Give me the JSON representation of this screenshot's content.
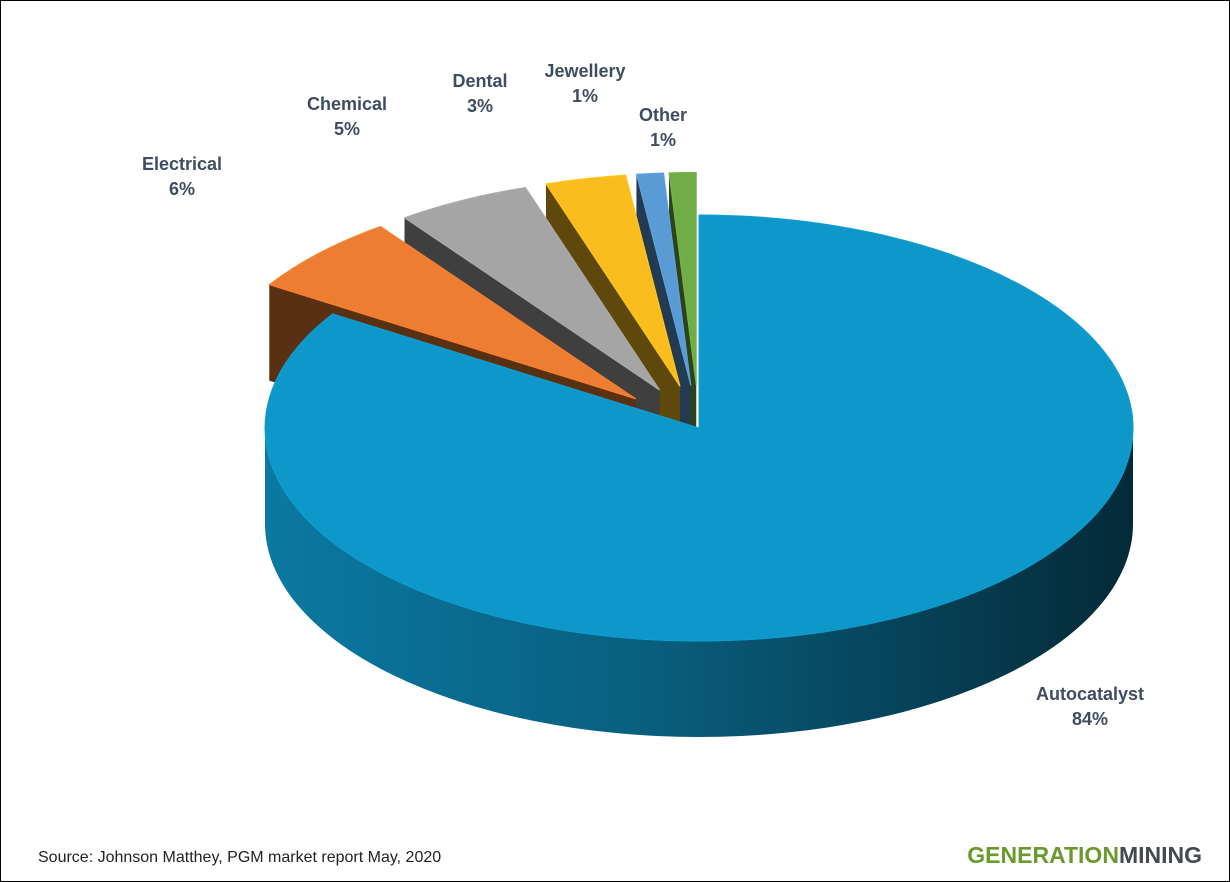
{
  "chart_data": {
    "type": "pie3d",
    "categories": [
      "Autocatalyst",
      "Electrical",
      "Chemical",
      "Dental",
      "Jewellery",
      "Other"
    ],
    "values": [
      84,
      6,
      5,
      3,
      1,
      1
    ],
    "value_labels": [
      "84%",
      "6%",
      "5%",
      "3%",
      "1%",
      "1%"
    ],
    "colors": [
      "#0e97c9",
      "#ed7d31",
      "#a5a5a5",
      "#fbbd1e",
      "#5b9bd5",
      "#70ad47"
    ]
  },
  "footer": {
    "source": "Source: Johnson Matthey, PGM market report May, 2020",
    "logo": [
      "GENERATION",
      "MINING"
    ]
  }
}
